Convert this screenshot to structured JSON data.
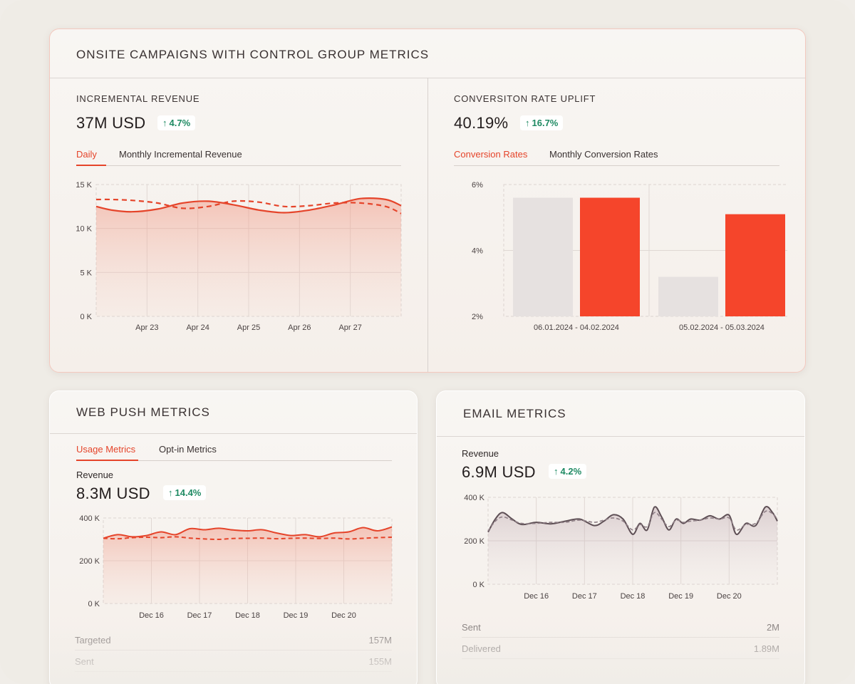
{
  "onsite": {
    "title": "ONSITE CAMPAIGNS WITH CONTROL GROUP METRICS",
    "revenue": {
      "label": "INCREMENTAL REVENUE",
      "value": "37M USD",
      "change": "4.7%",
      "tabs": [
        "Daily",
        "Monthly Incremental Revenue"
      ],
      "chart_data": {
        "type": "line",
        "y_ticks": [
          "15 K",
          "10 K",
          "5 K",
          "0 K"
        ],
        "ylim": [
          0,
          15000
        ],
        "x_ticks": [
          "Apr 23",
          "Apr 24",
          "Apr 25",
          "Apr 26",
          "Apr 27"
        ],
        "x": [
          22.1,
          22.4,
          22.8,
          23.3,
          23.8,
          24.3,
          24.8,
          25.3,
          25.8,
          26.3,
          26.8,
          27.3,
          27.8,
          28.1
        ],
        "series": [
          {
            "style": "solid",
            "values": [
              12500,
              12100,
              11900,
              12200,
              12900,
              13100,
              12700,
              12100,
              11800,
              12100,
              12700,
              13400,
              13300,
              12600
            ]
          },
          {
            "style": "dashed",
            "values": [
              13300,
              13300,
              13200,
              12900,
              12300,
              12500,
              13100,
              13000,
              12500,
              12600,
              12900,
              12900,
              12500,
              11700
            ]
          }
        ]
      }
    },
    "conversion": {
      "label": "CONVERSITON RATE UPLIFT",
      "value": "40.19%",
      "change": "16.7%",
      "tabs": [
        "Conversion Rates",
        "Monthly Conversion Rates"
      ],
      "chart_data": {
        "type": "bar",
        "y_ticks": [
          "6%",
          "4%",
          "2%"
        ],
        "ylim": [
          2,
          6
        ],
        "categories": [
          "06.01.2024 - 04.02.2024",
          "05.02.2024 - 05.03.2024"
        ],
        "series": [
          {
            "color": "#e6e1e0",
            "values": [
              5.6,
              3.2
            ]
          },
          {
            "color": "#f5452b",
            "values": [
              5.6,
              5.1
            ]
          }
        ]
      }
    }
  },
  "webpush": {
    "title": "WEB PUSH METRICS",
    "tabs": [
      "Usage Metrics",
      "Opt-in Metrics"
    ],
    "metric_label": "Revenue",
    "value": "8.3M USD",
    "change": "14.4%",
    "chart_data": {
      "type": "line",
      "y_ticks": [
        "400 K",
        "200 K",
        "0 K"
      ],
      "ylim": [
        0,
        400000
      ],
      "x_ticks": [
        "Dec 16",
        "Dec 17",
        "Dec 18",
        "Dec 19",
        "Dec 20"
      ],
      "x": [
        15,
        15.3,
        15.6,
        15.9,
        16.2,
        16.5,
        16.8,
        17.1,
        17.4,
        17.7,
        18,
        18.3,
        18.6,
        18.9,
        19.2,
        19.5,
        19.8,
        20.1,
        20.4,
        20.7,
        21
      ],
      "series": [
        {
          "style": "solid",
          "values": [
            305000,
            322000,
            312000,
            318000,
            335000,
            322000,
            350000,
            345000,
            352000,
            344000,
            340000,
            345000,
            330000,
            318000,
            322000,
            312000,
            330000,
            335000,
            355000,
            340000,
            358000
          ]
        },
        {
          "style": "dashed",
          "values": [
            305000,
            303000,
            308000,
            310000,
            308000,
            312000,
            306000,
            302000,
            300000,
            304000,
            305000,
            306000,
            303000,
            305000,
            306000,
            304000,
            306000,
            302000,
            305000,
            308000,
            310000
          ]
        }
      ]
    },
    "stats": [
      {
        "label": "Targeted",
        "value": "157M"
      },
      {
        "label": "Sent",
        "value": "155M"
      }
    ]
  },
  "email": {
    "title": "EMAIL METRICS",
    "metric_label": "Revenue",
    "value": "6.9M USD",
    "change": "4.2%",
    "chart_data": {
      "type": "line",
      "y_ticks": [
        "400 K",
        "200 K",
        "0 K"
      ],
      "ylim": [
        0,
        400000
      ],
      "x_ticks": [
        "Dec 16",
        "Dec 17",
        "Dec 18",
        "Dec 19",
        "Dec 20"
      ],
      "x": [
        15,
        15.15,
        15.3,
        15.5,
        15.7,
        16,
        16.3,
        16.6,
        16.9,
        17.2,
        17.4,
        17.6,
        17.8,
        18,
        18.15,
        18.3,
        18.45,
        18.6,
        18.75,
        18.9,
        19.05,
        19.2,
        19.4,
        19.6,
        19.8,
        20,
        20.15,
        20.35,
        20.55,
        20.75,
        20.9,
        21
      ],
      "series": [
        {
          "style": "solid",
          "values": [
            240000,
            300000,
            330000,
            300000,
            275000,
            285000,
            278000,
            290000,
            300000,
            270000,
            290000,
            320000,
            300000,
            230000,
            280000,
            250000,
            355000,
            310000,
            250000,
            300000,
            280000,
            300000,
            295000,
            315000,
            300000,
            318000,
            230000,
            280000,
            270000,
            355000,
            330000,
            290000
          ]
        },
        {
          "style": "dashed",
          "values": [
            245000,
            290000,
            310000,
            295000,
            280000,
            280000,
            285000,
            285000,
            295000,
            285000,
            295000,
            305000,
            290000,
            250000,
            275000,
            265000,
            330000,
            300000,
            265000,
            295000,
            285000,
            290000,
            295000,
            305000,
            300000,
            305000,
            250000,
            275000,
            280000,
            335000,
            325000,
            300000
          ]
        }
      ]
    },
    "stats": [
      {
        "label": "Sent",
        "value": "2M"
      },
      {
        "label": "Delivered",
        "value": "1.89M"
      }
    ]
  }
}
